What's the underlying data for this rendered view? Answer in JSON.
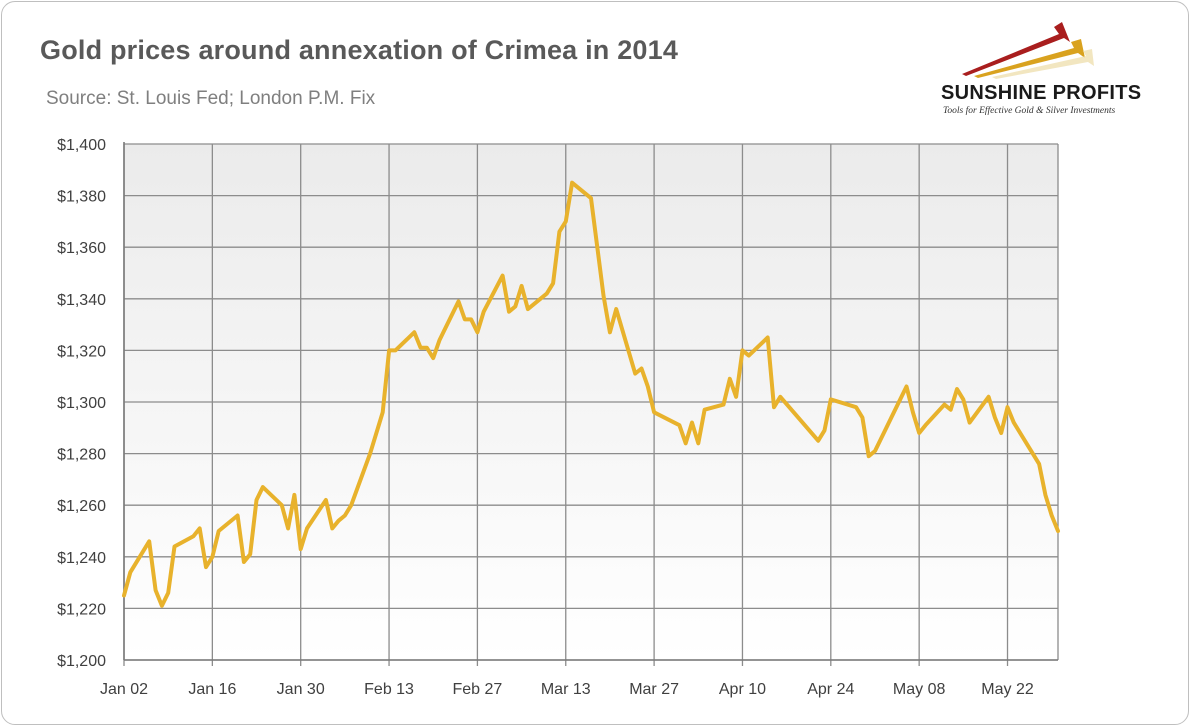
{
  "branding": {
    "name": "SUNSHINE PROFITS",
    "tagline": "Tools for Effective Gold & Silver Investments"
  },
  "colors": {
    "line": "#E8B22C",
    "grid": "#8c8c8c",
    "plot_top": "#ebebeb",
    "plot_bottom": "#ffffff",
    "text": "#595959"
  },
  "chart_data": {
    "type": "line",
    "title": "Gold prices around annexation of Crimea in 2014",
    "subtitle": "Source: St. Louis Fed; London P.M. Fix",
    "xlabel": "",
    "ylabel": "",
    "ylim": [
      1200,
      1400
    ],
    "ytick_values": [
      1200,
      1220,
      1240,
      1260,
      1280,
      1300,
      1320,
      1340,
      1360,
      1380,
      1400
    ],
    "ytick_labels": [
      "$1,200",
      "$1,220",
      "$1,240",
      "$1,260",
      "$1,280",
      "$1,300",
      "$1,320",
      "$1,340",
      "$1,360",
      "$1,380",
      "$1,400"
    ],
    "xlim": [
      "2014-01-02",
      "2014-05-30"
    ],
    "xtick_labels": [
      "Jan 02",
      "Jan 16",
      "Jan 30",
      "Feb 13",
      "Feb 27",
      "Mar 13",
      "Mar 27",
      "Apr 10",
      "Apr 24",
      "May 08",
      "May 22"
    ],
    "xtick_dates": [
      "2014-01-02",
      "2014-01-16",
      "2014-01-30",
      "2014-02-13",
      "2014-02-27",
      "2014-03-13",
      "2014-03-27",
      "2014-04-10",
      "2014-04-24",
      "2014-05-08",
      "2014-05-22"
    ],
    "grid": true,
    "legend": "none",
    "series": [
      {
        "points": [
          [
            "2014-01-02",
            1225
          ],
          [
            "2014-01-03",
            1234
          ],
          [
            "2014-01-06",
            1246
          ],
          [
            "2014-01-07",
            1227
          ],
          [
            "2014-01-08",
            1221
          ],
          [
            "2014-01-09",
            1226
          ],
          [
            "2014-01-10",
            1244
          ],
          [
            "2014-01-13",
            1248
          ],
          [
            "2014-01-14",
            1251
          ],
          [
            "2014-01-15",
            1236
          ],
          [
            "2014-01-16",
            1240
          ],
          [
            "2014-01-17",
            1250
          ],
          [
            "2014-01-20",
            1256
          ],
          [
            "2014-01-21",
            1238
          ],
          [
            "2014-01-22",
            1241
          ],
          [
            "2014-01-23",
            1262
          ],
          [
            "2014-01-24",
            1267
          ],
          [
            "2014-01-27",
            1260
          ],
          [
            "2014-01-28",
            1251
          ],
          [
            "2014-01-29",
            1264
          ],
          [
            "2014-01-30",
            1243
          ],
          [
            "2014-01-31",
            1251
          ],
          [
            "2014-02-03",
            1262
          ],
          [
            "2014-02-04",
            1251
          ],
          [
            "2014-02-05",
            1254
          ],
          [
            "2014-02-06",
            1256
          ],
          [
            "2014-02-07",
            1260
          ],
          [
            "2014-02-10",
            1280
          ],
          [
            "2014-02-12",
            1296
          ],
          [
            "2014-02-13",
            1320
          ],
          [
            "2014-02-14",
            1320
          ],
          [
            "2014-02-17",
            1327
          ],
          [
            "2014-02-18",
            1321
          ],
          [
            "2014-02-19",
            1321
          ],
          [
            "2014-02-20",
            1317
          ],
          [
            "2014-02-21",
            1324
          ],
          [
            "2014-02-24",
            1339
          ],
          [
            "2014-02-25",
            1332
          ],
          [
            "2014-02-26",
            1332
          ],
          [
            "2014-02-27",
            1327
          ],
          [
            "2014-02-28",
            1335
          ],
          [
            "2014-03-03",
            1349
          ],
          [
            "2014-03-04",
            1335
          ],
          [
            "2014-03-05",
            1337
          ],
          [
            "2014-03-06",
            1345
          ],
          [
            "2014-03-07",
            1336
          ],
          [
            "2014-03-10",
            1342
          ],
          [
            "2014-03-11",
            1346
          ],
          [
            "2014-03-12",
            1366
          ],
          [
            "2014-03-13",
            1370
          ],
          [
            "2014-03-14",
            1385
          ],
          [
            "2014-03-17",
            1379
          ],
          [
            "2014-03-18",
            1360
          ],
          [
            "2014-03-19",
            1341
          ],
          [
            "2014-03-20",
            1327
          ],
          [
            "2014-03-21",
            1336
          ],
          [
            "2014-03-24",
            1311
          ],
          [
            "2014-03-25",
            1313
          ],
          [
            "2014-03-26",
            1306
          ],
          [
            "2014-03-27",
            1296
          ],
          [
            "2014-03-31",
            1291
          ],
          [
            "2014-04-01",
            1284
          ],
          [
            "2014-04-02",
            1292
          ],
          [
            "2014-04-03",
            1284
          ],
          [
            "2014-04-04",
            1297
          ],
          [
            "2014-04-07",
            1299
          ],
          [
            "2014-04-08",
            1309
          ],
          [
            "2014-04-09",
            1302
          ],
          [
            "2014-04-10",
            1320
          ],
          [
            "2014-04-11",
            1318
          ],
          [
            "2014-04-14",
            1325
          ],
          [
            "2014-04-15",
            1298
          ],
          [
            "2014-04-16",
            1302
          ],
          [
            "2014-04-22",
            1285
          ],
          [
            "2014-04-23",
            1289
          ],
          [
            "2014-04-24",
            1301
          ],
          [
            "2014-04-28",
            1298
          ],
          [
            "2014-04-29",
            1294
          ],
          [
            "2014-04-30",
            1279
          ],
          [
            "2014-05-01",
            1281
          ],
          [
            "2014-05-06",
            1306
          ],
          [
            "2014-05-07",
            1296
          ],
          [
            "2014-05-08",
            1288
          ],
          [
            "2014-05-09",
            1291
          ],
          [
            "2014-05-12",
            1299
          ],
          [
            "2014-05-13",
            1297
          ],
          [
            "2014-05-14",
            1305
          ],
          [
            "2014-05-15",
            1301
          ],
          [
            "2014-05-16",
            1292
          ],
          [
            "2014-05-19",
            1302
          ],
          [
            "2014-05-20",
            1294
          ],
          [
            "2014-05-21",
            1288
          ],
          [
            "2014-05-22",
            1298
          ],
          [
            "2014-05-23",
            1292
          ],
          [
            "2014-05-27",
            1276
          ],
          [
            "2014-05-28",
            1264
          ],
          [
            "2014-05-29",
            1256
          ],
          [
            "2014-05-30",
            1250
          ]
        ]
      }
    ]
  }
}
